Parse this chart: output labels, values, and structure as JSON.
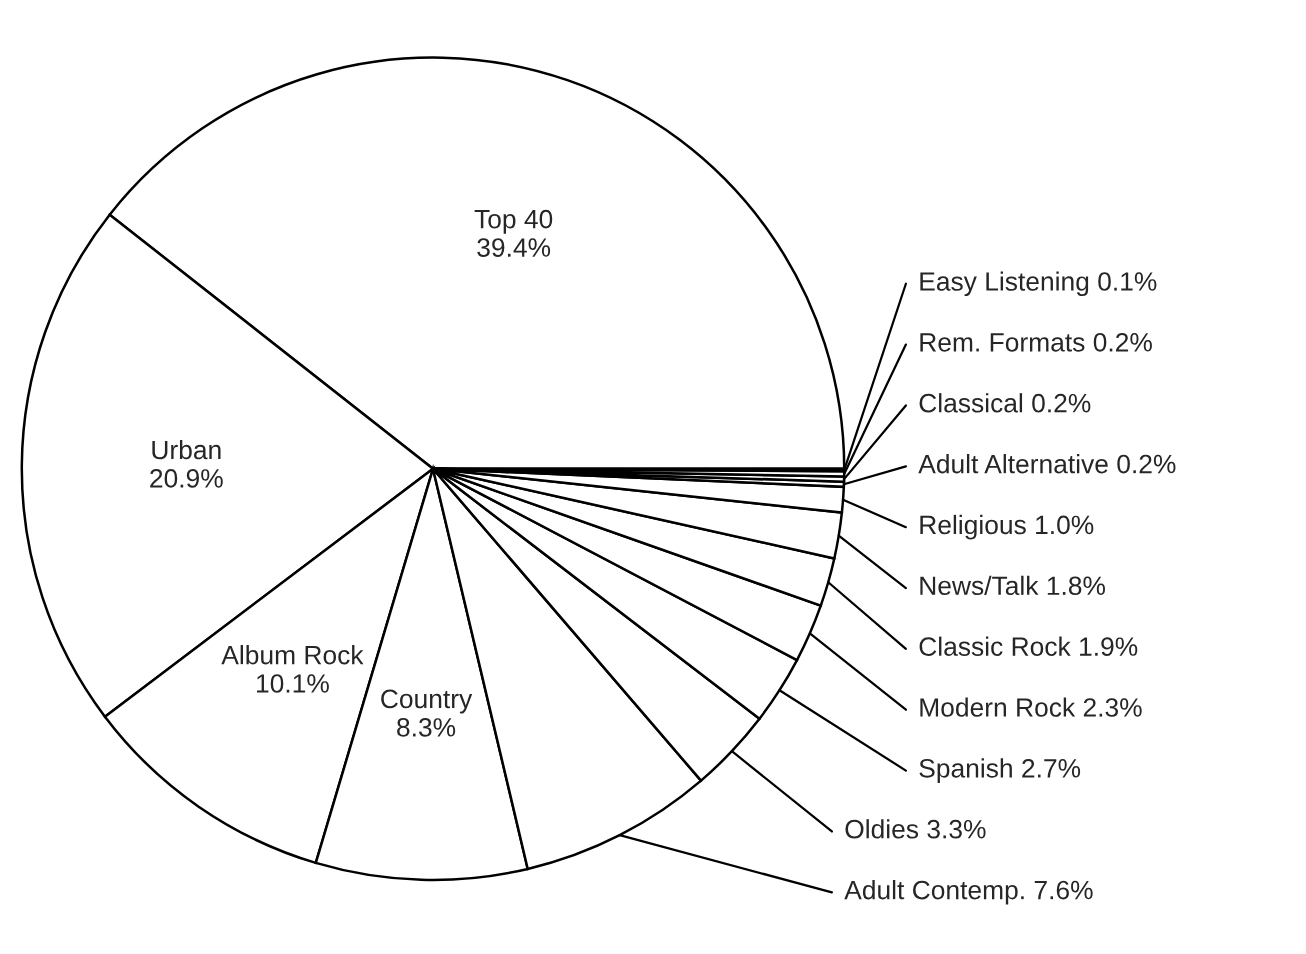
{
  "chart_data": {
    "type": "pie",
    "categories": [
      "Top 40",
      "Urban",
      "Album Rock",
      "Country",
      "Adult Contemp.",
      "Oldies",
      "Spanish",
      "Modern Rock",
      "Classic Rock",
      "News/Talk",
      "Religious",
      "Adult Alternative",
      "Classical",
      "Rem. Formats",
      "Easy Listening"
    ],
    "values": [
      39.4,
      20.9,
      10.1,
      8.3,
      7.6,
      3.3,
      2.7,
      2.3,
      1.9,
      1.8,
      1.0,
      0.2,
      0.2,
      0.2,
      0.1
    ],
    "value_labels": [
      "39.4%",
      "20.9%",
      "10.1%",
      "8.3%",
      "7.6%",
      "3.3%",
      "2.7%",
      "2.3%",
      "1.9%",
      "1.8%",
      "1.0%",
      "0.2%",
      "0.2%",
      "0.2%",
      "0.1%"
    ],
    "colors": [
      "#ffffff",
      "#ffffff",
      "#ffffff",
      "#ffffff",
      "#ffffff",
      "#ffffff",
      "#ffffff",
      "#ffffff",
      "#ffffff",
      "#ffffff",
      "#ffffff",
      "#ffffff",
      "#ffffff",
      "#ffffff",
      "#ffffff"
    ]
  }
}
